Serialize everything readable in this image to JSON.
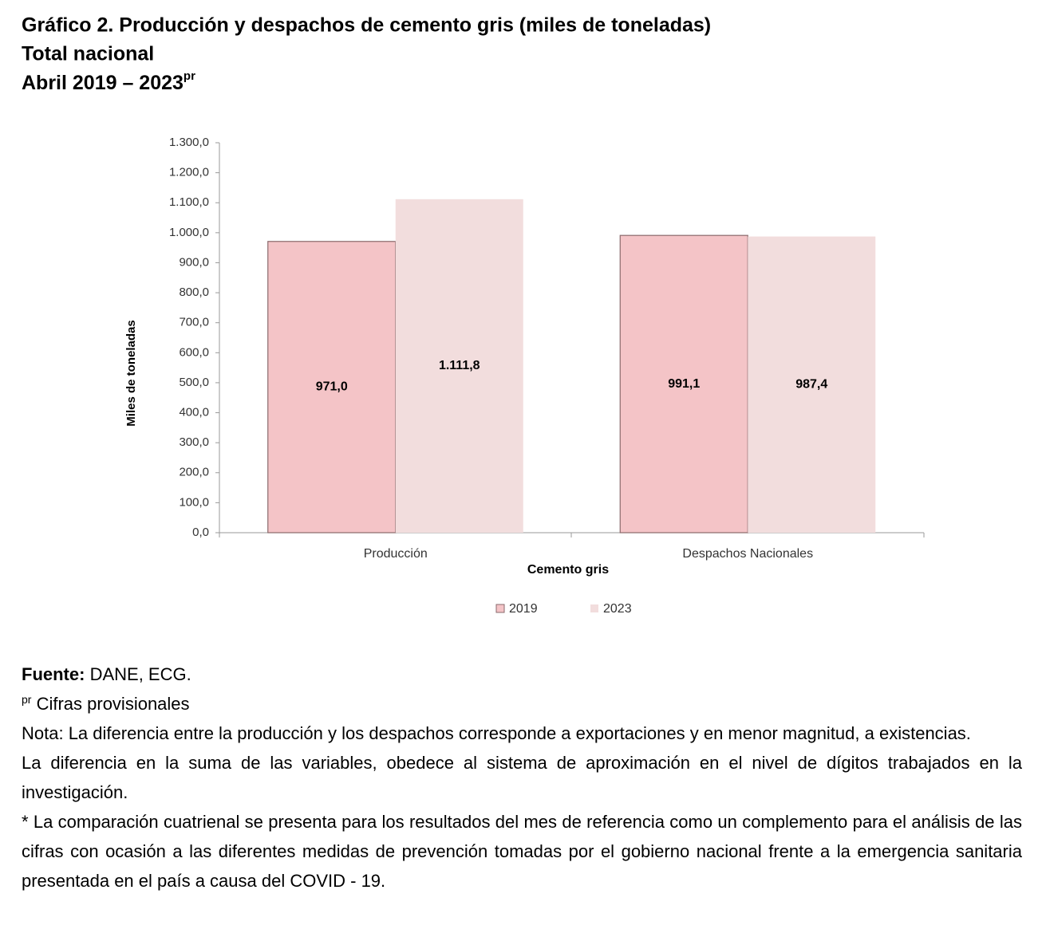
{
  "chart_data": {
    "type": "bar",
    "title": "Gráfico 2. Producción y despachos de cemento gris (miles de toneladas)",
    "subtitle": [
      "Total nacional",
      "Abril 2019 – 2023"
    ],
    "subtitle_sup": "pr",
    "y_axis_label": "Miles de toneladas",
    "x_axis_label": "Cemento gris",
    "categories": [
      "Producción",
      "Despachos Nacionales"
    ],
    "series": [
      {
        "name": "2019",
        "color": "#f4c4c7",
        "values": [
          971.0,
          991.1
        ],
        "value_labels": [
          "971,0",
          "991,1"
        ]
      },
      {
        "name": "2023",
        "color": "#f2dddd",
        "values": [
          1111.8,
          987.4
        ],
        "value_labels": [
          "1.111,8",
          "987,4"
        ]
      }
    ],
    "ylim": [
      0,
      1300
    ],
    "yticks": [
      {
        "value": 0,
        "label": "0,0"
      },
      {
        "value": 100,
        "label": "100,0"
      },
      {
        "value": 200,
        "label": "200,0"
      },
      {
        "value": 300,
        "label": "300,0"
      },
      {
        "value": 400,
        "label": "400,0"
      },
      {
        "value": 500,
        "label": "500,0"
      },
      {
        "value": 600,
        "label": "600,0"
      },
      {
        "value": 700,
        "label": "700,0"
      },
      {
        "value": 800,
        "label": "800,0"
      },
      {
        "value": 900,
        "label": "900,0"
      },
      {
        "value": 1000,
        "label": "1.000,0"
      },
      {
        "value": 1100,
        "label": "1.100,0"
      },
      {
        "value": 1200,
        "label": "1.200,0"
      },
      {
        "value": 1300,
        "label": "1.300,0"
      }
    ],
    "grid": false,
    "legend": "bottom"
  },
  "notes": {
    "source_label": "Fuente:",
    "source": "DANE, ECG.",
    "footnote_sup": "pr",
    "footnote": "Cifras provisionales",
    "paragraphs": [
      "Nota: La diferencia entre la producción y los despachos corresponde a exportaciones y en menor magnitud, a existencias.",
      "La diferencia en la suma de las variables, obedece al sistema de aproximación en el nivel de dígitos trabajados en la investigación.",
      "* La comparación cuatrienal se presenta para los resultados del mes de referencia como un complemento para el análisis de las cifras con ocasión a las diferentes medidas de prevención tomadas por el gobierno nacional frente a la emergencia sanitaria presentada en el país a causa del COVID - 19."
    ]
  }
}
